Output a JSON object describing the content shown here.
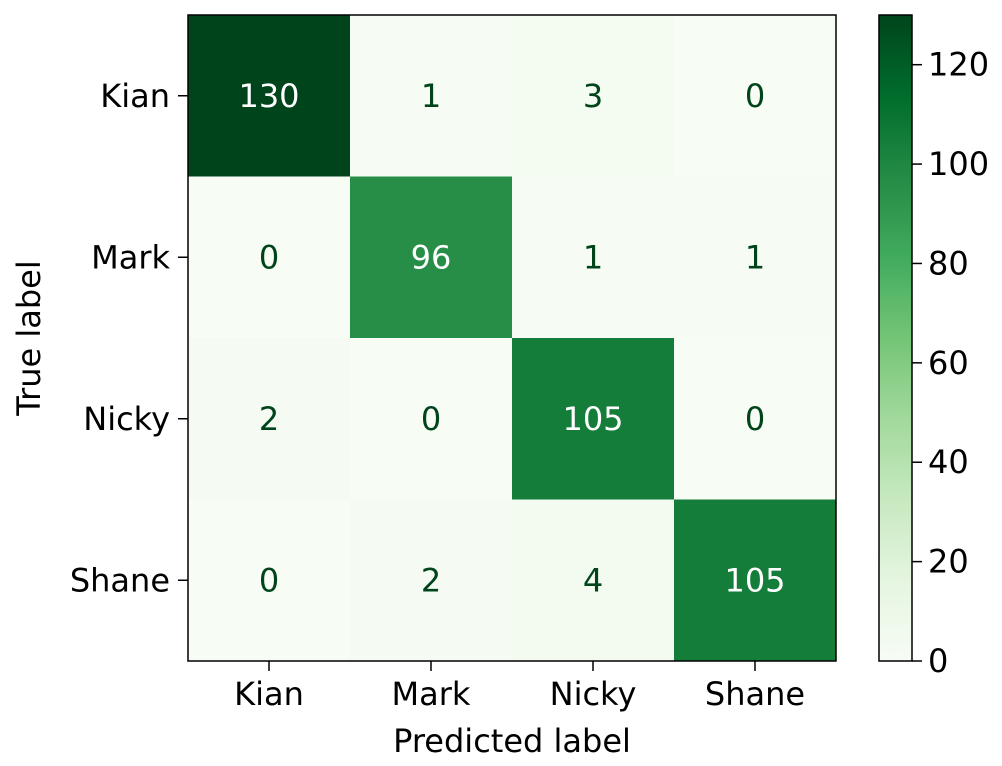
{
  "chart_data": {
    "type": "heatmap",
    "title": "",
    "xlabel": "Predicted label",
    "ylabel": "True label",
    "x_categories": [
      "Kian",
      "Mark",
      "Nicky",
      "Shane"
    ],
    "y_categories": [
      "Kian",
      "Mark",
      "Nicky",
      "Shane"
    ],
    "matrix": [
      [
        130,
        1,
        3,
        0
      ],
      [
        0,
        96,
        1,
        1
      ],
      [
        2,
        0,
        105,
        0
      ],
      [
        0,
        2,
        4,
        105
      ]
    ],
    "colormap": "Greens",
    "colorbar": {
      "range": [
        0,
        130
      ],
      "ticks": [
        0,
        20,
        40,
        60,
        80,
        100,
        120
      ]
    },
    "colors": {
      "low": "#f7fcf5",
      "high": "#00441b",
      "text_on_dark": "#ffffff",
      "text_on_light": "#00441b"
    }
  }
}
